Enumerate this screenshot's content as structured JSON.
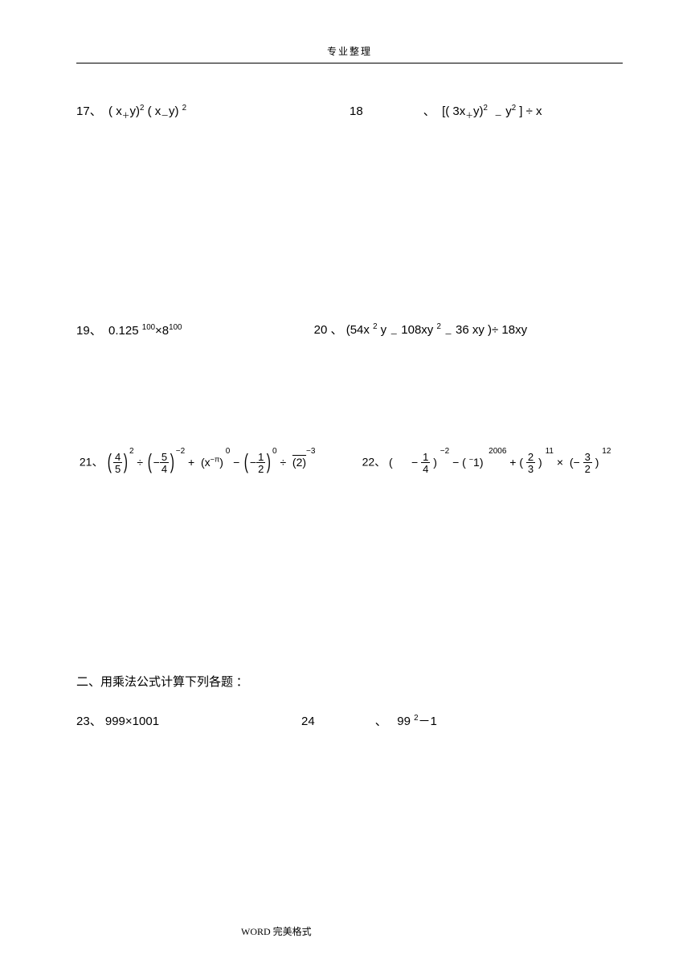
{
  "header": "专业整理",
  "footer": "WORD 完美格式",
  "problems": {
    "p17": {
      "num": "17",
      "expr": "( x＋y)² ( x－y) ²"
    },
    "p18": {
      "num": "18",
      "expr": "[( 3x＋y)² － y² ] ÷ x"
    },
    "p19": {
      "num": "19",
      "expr": "0.125 ¹⁰⁰×8¹⁰⁰"
    },
    "p20": {
      "num": "20",
      "expr": "(54x ² y － 108xy ² － 36 xy )÷ 18xy"
    },
    "p21": {
      "num": "21"
    },
    "p22": {
      "num": "22"
    },
    "p23": {
      "num": "23",
      "expr": "999×1001"
    },
    "p24": {
      "num": "24",
      "expr": "99 ²－1"
    }
  },
  "fractions": {
    "f45": {
      "n": "4",
      "d": "5"
    },
    "f54": {
      "n": "5",
      "d": "4"
    },
    "f12": {
      "n": "1",
      "d": "2"
    },
    "f14": {
      "n": "1",
      "d": "4"
    },
    "f23": {
      "n": "2",
      "d": "3"
    },
    "f32": {
      "n": "3",
      "d": "2"
    }
  },
  "section2": "二、用乘法公式计算下列各题   ：",
  "sep": "、",
  "colors": {
    "text": "#000000",
    "bg": "#ffffff"
  }
}
